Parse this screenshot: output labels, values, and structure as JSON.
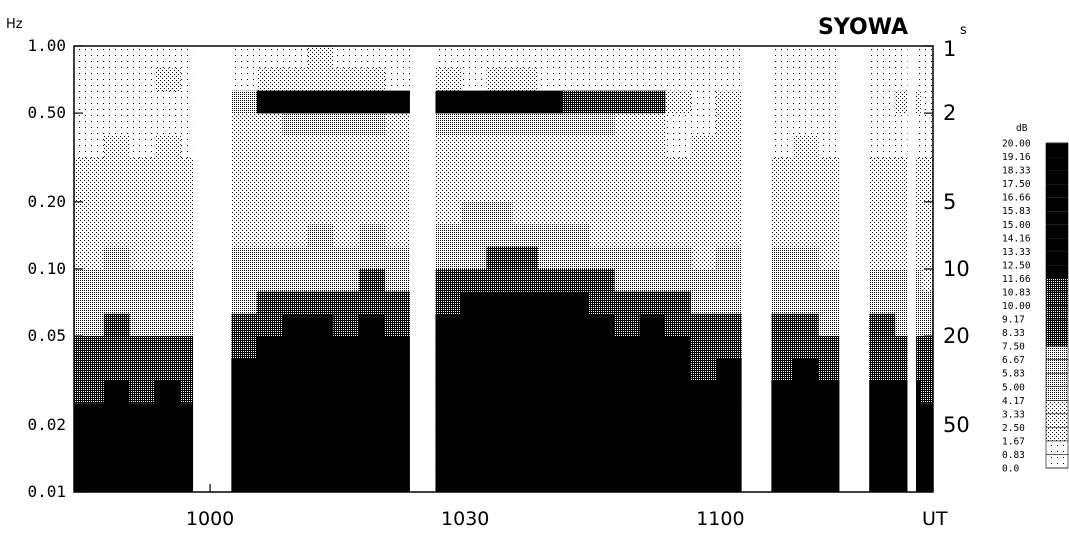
{
  "chart_data": {
    "type": "heatmap",
    "title": "SYOWA",
    "left_axis": {
      "unit": "Hz",
      "scale": "log",
      "range": [
        0.01,
        1.0
      ],
      "ticks": [
        {
          "value": 1.0,
          "label": "1.00"
        },
        {
          "value": 0.5,
          "label": "0.50"
        },
        {
          "value": 0.2,
          "label": "0.20"
        },
        {
          "value": 0.1,
          "label": "0.10"
        },
        {
          "value": 0.05,
          "label": "0.05"
        },
        {
          "value": 0.02,
          "label": "0.02"
        },
        {
          "value": 0.01,
          "label": "0.01"
        }
      ]
    },
    "right_axis": {
      "unit": "s",
      "scale": "log",
      "ticks": [
        {
          "value": 1,
          "label": "1"
        },
        {
          "value": 2,
          "label": "2"
        },
        {
          "value": 5,
          "label": "5"
        },
        {
          "value": 10,
          "label": "10"
        },
        {
          "value": 20,
          "label": "20"
        },
        {
          "value": 50,
          "label": "50"
        }
      ]
    },
    "x_axis": {
      "unit": "UT",
      "range": [
        "0944",
        "1125"
      ],
      "ticks": [
        {
          "value": "1000",
          "label": "1000"
        },
        {
          "value": "1030",
          "label": "1030"
        },
        {
          "value": "1100",
          "label": "1100"
        }
      ]
    },
    "colorbar": {
      "unit": "dB",
      "range": [
        0.0,
        20.0
      ],
      "levels": [
        "20.00",
        "19.16",
        "18.33",
        "17.50",
        "16.66",
        "15.83",
        "15.00",
        "14.16",
        "13.33",
        "12.50",
        "11.66",
        "10.83",
        "10.00",
        "9.17",
        "8.33",
        "7.50",
        "6.67",
        "5.83",
        "5.00",
        "4.17",
        "3.33",
        "2.50",
        "1.67",
        "0.83",
        "0.0"
      ]
    },
    "data_gaps_ut": [
      [
        "0958.5",
        "1000.5"
      ],
      [
        "1024",
        "1025"
      ],
      [
        "1103.5",
        "1106.5"
      ],
      [
        "1114.5",
        "1115.5"
      ],
      [
        "1122",
        "1123"
      ]
    ],
    "column_times_ut": [
      "0946",
      "0949",
      "0952",
      "0955",
      "0958",
      "1001",
      "1004",
      "1007",
      "1010",
      "1013",
      "1016",
      "1019",
      "1022",
      "1025",
      "1028",
      "1031",
      "1034",
      "1037",
      "1040",
      "1043",
      "1046",
      "1049",
      "1052",
      "1055",
      "1058",
      "1101",
      "1104",
      "1107",
      "1110",
      "1113",
      "1116",
      "1119",
      "1122",
      "1125"
    ],
    "row_freqs_hz": [
      0.0112,
      0.0141,
      0.0178,
      0.0224,
      0.0282,
      0.0355,
      0.0447,
      0.0562,
      0.0708,
      0.0891,
      0.1122,
      0.1413,
      0.1778,
      0.2239,
      0.2818,
      0.3548,
      0.4467,
      0.5623,
      0.7079,
      0.8913
    ],
    "grid_db": [
      [
        17,
        18,
        14,
        17,
        16,
        0,
        17,
        19,
        19,
        19,
        18,
        18,
        18,
        0,
        19,
        20,
        20,
        20,
        19,
        19,
        19,
        18,
        19,
        18,
        14,
        18,
        0,
        15,
        17,
        15,
        0,
        18,
        16,
        15
      ],
      [
        16,
        18,
        15,
        17,
        15,
        0,
        18,
        19,
        19,
        19,
        19,
        19,
        18,
        0,
        19,
        20,
        20,
        20,
        19,
        19,
        19,
        18,
        19,
        18,
        15,
        18,
        0,
        15,
        16,
        16,
        0,
        17,
        15,
        14
      ],
      [
        14,
        16,
        13,
        15,
        14,
        0,
        17,
        18,
        19,
        19,
        18,
        19,
        18,
        0,
        19,
        20,
        20,
        20,
        19,
        19,
        19,
        18,
        19,
        18,
        14,
        17,
        0,
        14,
        16,
        15,
        0,
        15,
        14,
        13
      ],
      [
        12,
        14,
        12,
        13,
        12,
        0,
        16,
        17,
        18,
        18,
        18,
        18,
        17,
        0,
        18,
        19,
        20,
        19,
        19,
        18,
        18,
        17,
        18,
        17,
        13,
        16,
        0,
        13,
        15,
        14,
        0,
        14,
        13,
        12
      ],
      [
        11,
        13,
        10,
        12,
        11,
        0,
        14,
        16,
        17,
        17,
        17,
        17,
        16,
        0,
        17,
        18,
        19,
        19,
        18,
        18,
        17,
        16,
        17,
        16,
        12,
        14,
        0,
        12,
        13,
        12,
        0,
        13,
        12,
        11
      ],
      [
        9,
        11,
        9,
        10,
        9,
        0,
        12,
        14,
        16,
        16,
        15,
        16,
        15,
        0,
        16,
        17,
        18,
        18,
        17,
        17,
        16,
        15,
        16,
        14,
        11,
        12,
        0,
        11,
        12,
        10,
        0,
        11,
        10,
        9
      ],
      [
        8,
        9,
        8,
        8,
        8,
        0,
        10,
        12,
        14,
        14,
        13,
        14,
        13,
        0,
        15,
        16,
        17,
        17,
        16,
        15,
        15,
        13,
        14,
        12,
        9,
        10,
        0,
        9,
        10,
        9,
        0,
        9,
        8,
        8
      ],
      [
        7,
        8,
        7,
        7,
        7,
        0,
        8,
        10,
        12,
        12,
        11,
        12,
        11,
        0,
        13,
        15,
        16,
        16,
        15,
        14,
        13,
        11,
        12,
        10,
        8,
        8,
        0,
        8,
        9,
        7,
        0,
        8,
        7,
        6
      ],
      [
        6,
        7,
        6,
        6,
        6,
        0,
        7,
        8,
        9,
        9,
        9,
        10,
        9,
        0,
        11,
        13,
        14,
        14,
        13,
        12,
        11,
        9,
        10,
        8,
        6,
        7,
        0,
        7,
        7,
        6,
        0,
        6,
        6,
        5
      ],
      [
        5,
        6,
        5,
        5,
        5,
        0,
        6,
        6,
        7,
        7,
        7,
        8,
        7,
        0,
        8,
        10,
        11,
        11,
        10,
        9,
        8,
        7,
        7,
        6,
        5,
        6,
        0,
        6,
        6,
        5,
        0,
        5,
        5,
        4
      ],
      [
        4,
        5,
        4,
        4,
        4,
        0,
        5,
        5,
        5,
        5,
        6,
        6,
        5,
        0,
        6,
        7,
        8,
        8,
        7,
        6,
        6,
        5,
        5,
        5,
        4,
        5,
        0,
        5,
        5,
        4,
        0,
        4,
        4,
        3
      ],
      [
        4,
        4,
        3,
        4,
        3,
        0,
        4,
        4,
        4,
        5,
        4,
        5,
        4,
        0,
        5,
        5,
        6,
        5,
        5,
        5,
        4,
        4,
        4,
        4,
        3,
        4,
        0,
        4,
        4,
        3,
        0,
        3,
        3,
        3
      ],
      [
        3,
        4,
        3,
        4,
        3,
        0,
        4,
        4,
        4,
        4,
        4,
        4,
        4,
        0,
        4,
        5,
        5,
        4,
        4,
        4,
        4,
        4,
        4,
        3,
        3,
        4,
        0,
        4,
        3,
        3,
        0,
        3,
        3,
        3
      ],
      [
        3,
        3,
        3,
        3,
        3,
        0,
        3,
        4,
        4,
        4,
        4,
        4,
        3,
        0,
        4,
        4,
        4,
        4,
        4,
        4,
        4,
        3,
        4,
        3,
        3,
        4,
        0,
        3,
        3,
        3,
        0,
        3,
        3,
        3
      ],
      [
        3,
        3,
        3,
        3,
        3,
        0,
        3,
        3,
        3,
        4,
        4,
        3,
        3,
        0,
        3,
        3,
        3,
        4,
        3,
        3,
        4,
        3,
        3,
        3,
        3,
        3,
        0,
        3,
        3,
        3,
        0,
        3,
        3,
        3
      ],
      [
        2,
        3,
        2,
        3,
        2,
        0,
        3,
        3,
        4,
        4,
        3,
        4,
        3,
        0,
        4,
        3,
        3,
        3,
        3,
        4,
        4,
        3,
        3,
        2,
        3,
        3,
        0,
        2,
        3,
        2,
        0,
        2,
        2,
        2
      ],
      [
        2,
        2,
        2,
        2,
        2,
        0,
        3,
        4,
        5,
        5,
        5,
        5,
        4,
        0,
        5,
        5,
        5,
        5,
        5,
        5,
        5,
        4,
        4,
        2,
        2,
        3,
        0,
        2,
        2,
        2,
        0,
        2,
        2,
        2
      ],
      [
        2,
        2,
        2,
        2,
        2,
        0,
        5,
        12,
        14,
        14,
        15,
        15,
        14,
        0,
        15,
        16,
        14,
        12,
        12,
        10,
        11,
        10,
        8,
        3,
        2,
        3,
        0,
        2,
        2,
        2,
        0,
        2,
        3,
        2
      ],
      [
        1,
        2,
        2,
        3,
        1,
        0,
        2,
        3,
        3,
        4,
        3,
        3,
        2,
        0,
        3,
        2,
        3,
        3,
        2,
        2,
        2,
        2,
        2,
        1,
        1,
        2,
        0,
        1,
        2,
        1,
        0,
        1,
        1,
        1
      ],
      [
        1,
        1,
        1,
        2,
        1,
        0,
        1,
        2,
        2,
        3,
        2,
        2,
        1,
        0,
        2,
        2,
        2,
        2,
        1,
        1,
        1,
        1,
        1,
        1,
        1,
        1,
        0,
        1,
        1,
        1,
        0,
        1,
        1,
        1
      ]
    ]
  }
}
